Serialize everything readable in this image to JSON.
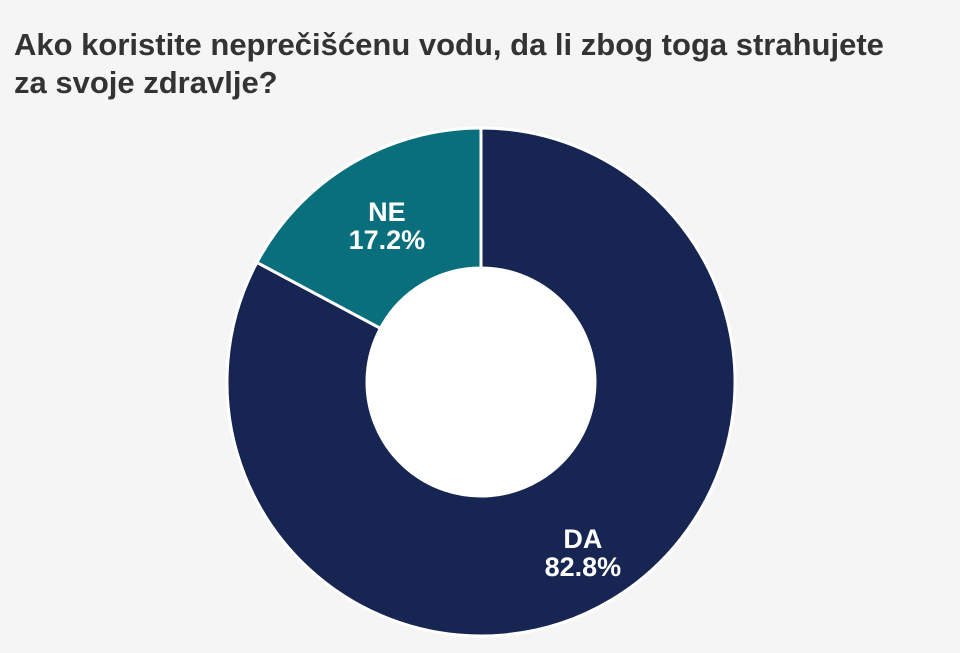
{
  "chart_data": {
    "type": "pie",
    "variant": "donut",
    "title": "Ako koristite neprečišćenu vodu, da li zbog toga strahujete za svoje zdravlje?",
    "slices": [
      {
        "label": "DA",
        "value": 82.8,
        "value_label": "82.8%",
        "color": "#162552"
      },
      {
        "label": "NE",
        "value": 17.2,
        "value_label": "17.2%",
        "color": "#0a6f7d"
      }
    ],
    "legend": "none",
    "start_angle": "12 o'clock, clockwise"
  }
}
